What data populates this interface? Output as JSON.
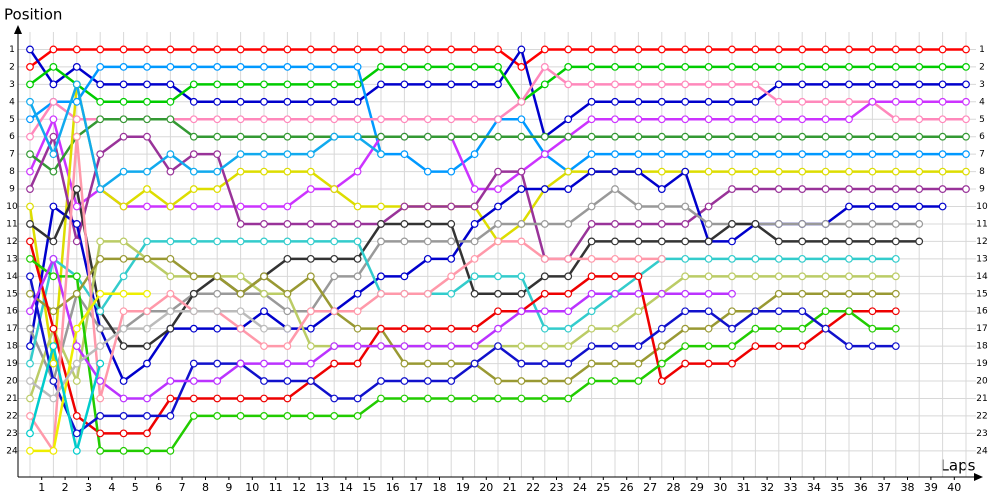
{
  "chart_data": {
    "type": "line",
    "ylabel": "Position",
    "xlabel": "Laps",
    "x": [
      0,
      1,
      2,
      3,
      4,
      5,
      6,
      7,
      8,
      9,
      10,
      11,
      12,
      13,
      14,
      15,
      16,
      17,
      18,
      19,
      20,
      21,
      22,
      23,
      24,
      25,
      26,
      27,
      28,
      29,
      30,
      31,
      32,
      33,
      34,
      35,
      36,
      37,
      38,
      39,
      40
    ],
    "xlim": [
      0,
      40
    ],
    "xticks": [
      {
        "value": 0.5,
        "label": "1"
      },
      {
        "value": 1.5,
        "label": "2"
      },
      {
        "value": 2.5,
        "label": "3"
      },
      {
        "value": 3.5,
        "label": "4"
      },
      {
        "value": 4.5,
        "label": "5"
      },
      {
        "value": 5.5,
        "label": "6"
      },
      {
        "value": 6.5,
        "label": "7"
      },
      {
        "value": 7.5,
        "label": "8"
      },
      {
        "value": 8.5,
        "label": "9"
      },
      {
        "value": 9.5,
        "label": "10"
      },
      {
        "value": 10.5,
        "label": "11"
      },
      {
        "value": 11.5,
        "label": "12"
      },
      {
        "value": 12.5,
        "label": "13"
      },
      {
        "value": 13.5,
        "label": "14"
      },
      {
        "value": 14.5,
        "label": "15"
      },
      {
        "value": 15.5,
        "label": "16"
      },
      {
        "value": 16.5,
        "label": "17"
      },
      {
        "value": 17.5,
        "label": "18"
      },
      {
        "value": 18.5,
        "label": "19"
      },
      {
        "value": 19.5,
        "label": "20"
      },
      {
        "value": 20.5,
        "label": "21"
      },
      {
        "value": 21.5,
        "label": "22"
      },
      {
        "value": 22.5,
        "label": "23"
      },
      {
        "value": 23.5,
        "label": "24"
      },
      {
        "value": 24.5,
        "label": "25"
      },
      {
        "value": 25.5,
        "label": "26"
      },
      {
        "value": 26.5,
        "label": "27"
      },
      {
        "value": 27.5,
        "label": "28"
      },
      {
        "value": 28.5,
        "label": "29"
      },
      {
        "value": 29.5,
        "label": "30"
      },
      {
        "value": 30.5,
        "label": "31"
      },
      {
        "value": 31.5,
        "label": "32"
      },
      {
        "value": 32.5,
        "label": "33"
      },
      {
        "value": 33.5,
        "label": "34"
      },
      {
        "value": 34.5,
        "label": "35"
      },
      {
        "value": 35.5,
        "label": "36"
      },
      {
        "value": 36.5,
        "label": "37"
      },
      {
        "value": 37.5,
        "label": "38"
      },
      {
        "value": 38.5,
        "label": "39"
      },
      {
        "value": 39.5,
        "label": "40"
      }
    ],
    "ylim": [
      25.5,
      0
    ],
    "yticks": [
      1,
      2,
      3,
      4,
      5,
      6,
      7,
      8,
      9,
      10,
      11,
      12,
      13,
      14,
      15,
      16,
      17,
      18,
      19,
      20,
      21,
      22,
      23,
      24
    ],
    "grid": true,
    "series": [
      {
        "color": "#ff0000",
        "values": [
          2,
          1,
          1,
          1,
          1,
          1,
          1,
          1,
          1,
          1,
          1,
          1,
          1,
          1,
          1,
          1,
          1,
          1,
          1,
          1,
          1,
          2,
          1,
          1,
          1,
          1,
          1,
          1,
          1,
          1,
          1,
          1,
          1,
          1,
          1,
          1,
          1,
          1,
          1,
          1,
          1
        ]
      },
      {
        "color": "#0000cc",
        "values": [
          1,
          3,
          2,
          3,
          3,
          3,
          3,
          4,
          4,
          4,
          4,
          4,
          4,
          4,
          4,
          3,
          3,
          3,
          3,
          3,
          3,
          1,
          6,
          5,
          4,
          4,
          4,
          4,
          4,
          4,
          4,
          4,
          3,
          3,
          3,
          3,
          3,
          3,
          3,
          3,
          3
        ]
      },
      {
        "color": "#00cc00",
        "values": [
          3,
          2,
          3,
          4,
          4,
          4,
          4,
          3,
          3,
          3,
          3,
          3,
          3,
          3,
          3,
          2,
          2,
          2,
          2,
          2,
          2,
          4,
          3,
          2,
          2,
          2,
          2,
          2,
          2,
          2,
          2,
          2,
          2,
          2,
          2,
          2,
          2,
          2,
          2,
          2,
          2
        ]
      },
      {
        "color": "#0099ff",
        "values": [
          5,
          4,
          4,
          2,
          2,
          2,
          2,
          2,
          2,
          2,
          2,
          2,
          2,
          2,
          2,
          7,
          7,
          8,
          8,
          7,
          5,
          5,
          7,
          8,
          7,
          7,
          7,
          7,
          7,
          7,
          7,
          7,
          7,
          7,
          7,
          7,
          7,
          7,
          7,
          7,
          7
        ]
      },
      {
        "color": "#ff88bb",
        "values": [
          6,
          4,
          5,
          5,
          5,
          5,
          5,
          5,
          5,
          5,
          5,
          5,
          5,
          5,
          5,
          5,
          5,
          5,
          5,
          5,
          5,
          4,
          2,
          3,
          3,
          3,
          3,
          3,
          3,
          3,
          3,
          3,
          4,
          4,
          4,
          4,
          4,
          5,
          5,
          5,
          5
        ]
      },
      {
        "color": "#cc33ff",
        "values": [
          8,
          5,
          10,
          9,
          10,
          10,
          10,
          10,
          10,
          10,
          10,
          10,
          9,
          9,
          8,
          6,
          6,
          6,
          6,
          9,
          9,
          8,
          7,
          6,
          5,
          5,
          5,
          5,
          5,
          5,
          5,
          5,
          5,
          5,
          5,
          5,
          4,
          4,
          4,
          4,
          4
        ]
      },
      {
        "color": "#339933",
        "values": [
          7,
          8,
          6,
          5,
          5,
          5,
          5,
          6,
          6,
          6,
          6,
          6,
          6,
          6,
          6,
          6,
          6,
          6,
          6,
          6,
          6,
          6,
          6,
          6,
          6,
          6,
          6,
          6,
          6,
          6,
          6,
          6,
          6,
          6,
          6,
          6,
          6,
          6,
          6,
          6,
          6
        ]
      },
      {
        "color": "#dddd00",
        "values": [
          10,
          19,
          3,
          9,
          10,
          9,
          10,
          9,
          9,
          8,
          8,
          8,
          8,
          9,
          10,
          10,
          10,
          10,
          10,
          10,
          12,
          11,
          9,
          8,
          8,
          8,
          8,
          8,
          8,
          8,
          8,
          8,
          8,
          8,
          8,
          8,
          8,
          8,
          8,
          8,
          8
        ]
      },
      {
        "color": "#993399",
        "values": [
          9,
          6,
          12,
          7,
          6,
          6,
          8,
          7,
          7,
          11,
          11,
          11,
          11,
          11,
          11,
          11,
          10,
          10,
          10,
          10,
          8,
          8,
          13,
          13,
          11,
          11,
          11,
          11,
          11,
          10,
          9,
          9,
          9,
          9,
          9,
          9,
          9,
          9,
          9,
          9,
          9
        ]
      },
      {
        "color": "#0000cc",
        "values": [
          18,
          10,
          11,
          17,
          20,
          19,
          17,
          17,
          17,
          17,
          16,
          17,
          17,
          16,
          15,
          14,
          14,
          13,
          13,
          11,
          10,
          9,
          9,
          9,
          8,
          8,
          8,
          9,
          8,
          12,
          12,
          11,
          11,
          11,
          11,
          10,
          10,
          10,
          10,
          10,
          null
        ]
      },
      {
        "color": "#999999",
        "values": [
          17,
          20,
          15,
          17,
          17,
          16,
          16,
          15,
          15,
          15,
          15,
          16,
          16,
          14,
          14,
          12,
          12,
          12,
          12,
          12,
          11,
          11,
          11,
          11,
          10,
          9,
          10,
          10,
          10,
          11,
          11,
          11,
          11,
          11,
          11,
          11,
          11,
          11,
          11,
          null,
          null
        ]
      },
      {
        "color": "#333333",
        "values": [
          11,
          12,
          9,
          16,
          18,
          18,
          17,
          15,
          14,
          15,
          14,
          13,
          13,
          13,
          13,
          11,
          11,
          11,
          11,
          15,
          15,
          15,
          14,
          14,
          12,
          12,
          12,
          12,
          12,
          12,
          11,
          11,
          12,
          12,
          12,
          12,
          12,
          12,
          12,
          null,
          null
        ]
      },
      {
        "color": "#33cccc",
        "values": [
          19,
          13,
          14,
          16,
          14,
          12,
          12,
          12,
          12,
          12,
          12,
          12,
          12,
          12,
          12,
          15,
          15,
          15,
          15,
          14,
          14,
          14,
          17,
          17,
          16,
          15,
          14,
          13,
          13,
          13,
          13,
          13,
          13,
          13,
          13,
          13,
          13,
          13,
          null,
          null,
          null
        ]
      },
      {
        "color": "#bbcc66",
        "values": [
          21,
          17,
          20,
          12,
          12,
          13,
          14,
          14,
          14,
          14,
          15,
          15,
          18,
          18,
          18,
          18,
          18,
          18,
          18,
          18,
          18,
          18,
          18,
          18,
          17,
          17,
          16,
          15,
          14,
          14,
          14,
          14,
          14,
          14,
          14,
          14,
          14,
          14,
          null,
          null,
          null
        ]
      },
      {
        "color": "#999933",
        "values": [
          15,
          16,
          15,
          13,
          13,
          13,
          13,
          14,
          14,
          15,
          14,
          15,
          14,
          16,
          17,
          17,
          19,
          19,
          19,
          19,
          20,
          20,
          20,
          20,
          19,
          19,
          19,
          18,
          17,
          17,
          16,
          16,
          15,
          15,
          15,
          15,
          15,
          15,
          null,
          null,
          null
        ]
      },
      {
        "color": "#ee0000",
        "values": [
          12,
          17,
          22,
          23,
          23,
          23,
          21,
          21,
          21,
          21,
          21,
          21,
          20,
          19,
          19,
          17,
          17,
          17,
          17,
          17,
          16,
          16,
          15,
          15,
          14,
          14,
          14,
          20,
          19,
          19,
          19,
          18,
          18,
          18,
          17,
          16,
          16,
          16,
          null,
          null,
          null
        ]
      },
      {
        "color": "#22cc00",
        "values": [
          13,
          14,
          14,
          24,
          24,
          24,
          24,
          22,
          22,
          22,
          22,
          22,
          22,
          22,
          22,
          21,
          21,
          21,
          21,
          21,
          21,
          21,
          21,
          21,
          20,
          20,
          20,
          19,
          18,
          18,
          18,
          17,
          17,
          17,
          16,
          16,
          17,
          17,
          null,
          null,
          null
        ]
      },
      {
        "color": "#1111cc",
        "values": [
          14,
          20,
          23,
          22,
          22,
          22,
          22,
          19,
          19,
          19,
          20,
          20,
          20,
          21,
          21,
          20,
          20,
          20,
          20,
          19,
          18,
          19,
          19,
          19,
          18,
          18,
          18,
          17,
          16,
          16,
          17,
          16,
          16,
          16,
          17,
          18,
          18,
          18,
          null,
          null,
          null
        ]
      },
      {
        "color": "#bb33ff",
        "values": [
          16,
          13,
          18,
          20,
          21,
          21,
          20,
          20,
          20,
          19,
          19,
          19,
          19,
          18,
          18,
          18,
          18,
          18,
          18,
          18,
          17,
          16,
          16,
          16,
          15,
          15,
          15,
          15,
          15,
          15,
          15,
          null,
          null,
          null,
          null,
          null,
          null,
          null,
          null,
          null,
          null
        ]
      },
      {
        "color": "#ff99aa",
        "values": [
          22,
          24,
          6,
          21,
          16,
          16,
          15,
          16,
          16,
          17,
          18,
          18,
          16,
          16,
          16,
          15,
          15,
          15,
          14,
          13,
          12,
          12,
          13,
          13,
          13,
          13,
          13,
          13,
          null,
          null,
          null,
          null,
          null,
          null,
          null,
          null,
          null,
          null,
          null,
          null,
          null
        ]
      },
      {
        "color": "#eeee00",
        "values": [
          24,
          24,
          17,
          15,
          15,
          15,
          null,
          null,
          null,
          null,
          null,
          null,
          null,
          null,
          null,
          null,
          null,
          null,
          null,
          null,
          null,
          null,
          null,
          null,
          null,
          null,
          null,
          null,
          null,
          null,
          null,
          null,
          null,
          null,
          null,
          null,
          null,
          null,
          null,
          null,
          null
        ]
      },
      {
        "color": "#11aaee",
        "values": [
          4,
          7,
          3,
          9,
          8,
          8,
          7,
          8,
          8,
          7,
          7,
          7,
          7,
          6,
          6,
          7,
          null,
          null,
          null,
          null,
          null,
          null,
          null,
          null,
          null,
          null,
          null,
          null,
          null,
          null,
          null,
          null,
          null,
          null,
          null,
          null,
          null,
          null,
          null,
          null,
          null
        ]
      },
      {
        "color": "#bbbbbb",
        "values": [
          20,
          21,
          19,
          18,
          17,
          17,
          16,
          16,
          16,
          16,
          17,
          17,
          null,
          null,
          null,
          null,
          null,
          null,
          null,
          null,
          null,
          null,
          null,
          null,
          null,
          null,
          null,
          null,
          null,
          null,
          null,
          null,
          null,
          null,
          null,
          null,
          null,
          null,
          null,
          null,
          null
        ]
      },
      {
        "color": "#00cccc",
        "values": [
          23,
          18,
          24,
          19,
          null,
          null,
          null,
          null,
          null,
          null,
          null,
          null,
          null,
          null,
          null,
          null,
          null,
          null,
          null,
          null,
          null,
          null,
          null,
          null,
          null,
          null,
          null,
          null,
          null,
          null,
          null,
          null,
          null,
          null,
          null,
          null,
          null,
          null,
          null,
          null,
          null
        ]
      }
    ]
  }
}
